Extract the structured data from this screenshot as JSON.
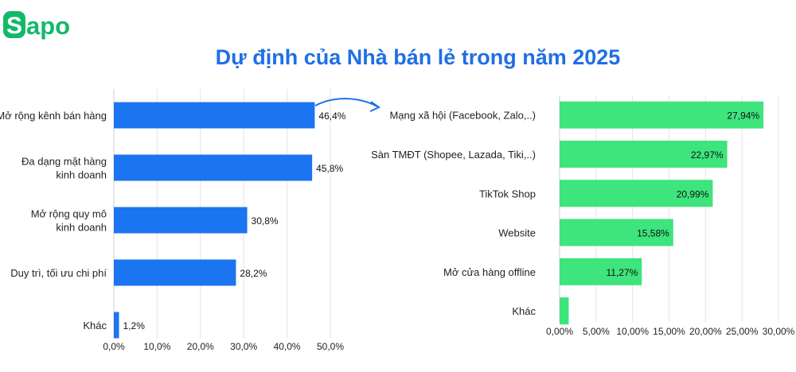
{
  "brand": {
    "logo_text": "Sapo",
    "color": "#14b86a"
  },
  "title": "Dự định của Nhà bán lẻ trong năm 2025",
  "colors": {
    "title": "#1f6fe5",
    "left_bar": "#1b74f0",
    "right_bar": "#3ee47c",
    "arrow": "#1f6fe5",
    "grid": "#e4e4e4"
  },
  "chart_data": [
    {
      "type": "bar",
      "orientation": "horizontal",
      "categories": [
        [
          "Mở rộng kênh bán hàng"
        ],
        [
          "Đa dạng mặt hàng",
          "kinh doanh"
        ],
        [
          "Mở rộng quy mô",
          "kinh doanh"
        ],
        [
          "Duy trì, tối ưu chi phí"
        ],
        [
          "Khác"
        ]
      ],
      "values": [
        46.4,
        45.8,
        30.8,
        28.2,
        1.2
      ],
      "value_labels": [
        "46,4%",
        "45,8%",
        "30,8%",
        "28,2%",
        "1,2%"
      ],
      "xlim": [
        0,
        50
      ],
      "ticks": [
        "0,0%",
        "10,0%",
        "20,0%",
        "30,0%",
        "40,0%",
        "50,0%"
      ],
      "grid": true
    },
    {
      "type": "bar",
      "orientation": "horizontal",
      "categories": [
        [
          "Mạng xã hội (Facebook, Zalo,..)"
        ],
        [
          "Sàn TMĐT (Shopee, Lazada, Tiki,..)"
        ],
        [
          "TikTok Shop"
        ],
        [
          "Website"
        ],
        [
          "Mở cửa hàng offline"
        ],
        [
          "Khác"
        ]
      ],
      "values": [
        27.94,
        22.97,
        20.99,
        15.58,
        11.27,
        1.25
      ],
      "value_labels": [
        "27,94%",
        "22,97%",
        "20,99%",
        "15,58%",
        "11,27%",
        ""
      ],
      "xlim": [
        0,
        30
      ],
      "ticks": [
        "0,00%",
        "5,00%",
        "10,00%",
        "15,00%",
        "20,00%",
        "25,00%",
        "30,00%"
      ],
      "grid": true
    }
  ]
}
